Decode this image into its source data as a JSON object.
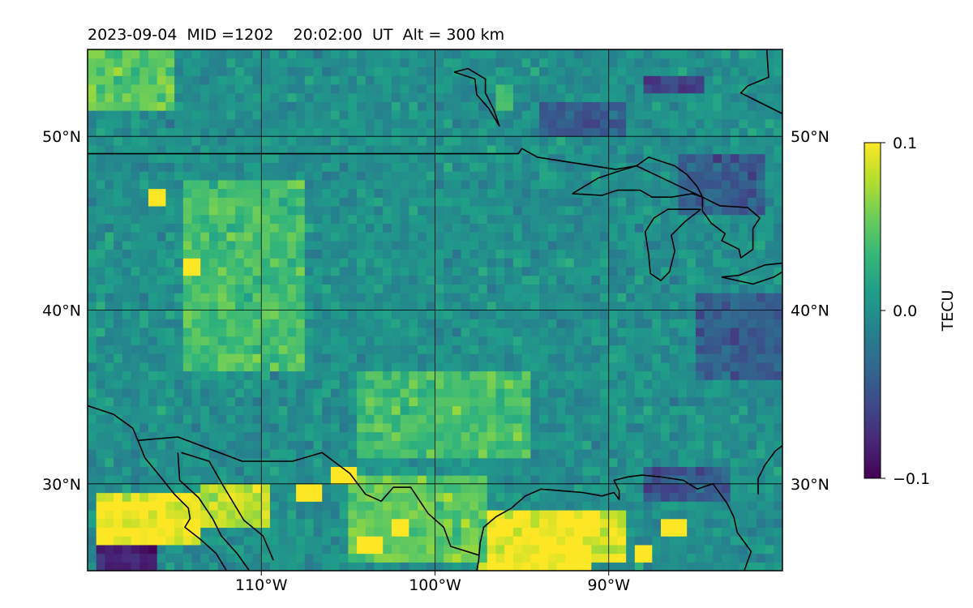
{
  "chart_data": {
    "type": "heatmap",
    "title": "2023-09-04  MID =1202    20:02:00  UT  Alt = 300 km",
    "xlabel": "",
    "ylabel": "",
    "xlim": [
      -120,
      -80
    ],
    "ylim": [
      25,
      55
    ],
    "x_ticks": [
      {
        "value": -110,
        "label": "110°W"
      },
      {
        "value": -100,
        "label": "100°W"
      },
      {
        "value": -90,
        "label": "90°W"
      }
    ],
    "y_ticks": [
      {
        "value": 30,
        "label": "30°N"
      },
      {
        "value": 40,
        "label": "40°N"
      },
      {
        "value": 50,
        "label": "50°N"
      }
    ],
    "grid": true,
    "colormap": "viridis",
    "colorbar": {
      "label": "TECU",
      "range": [
        -0.1,
        0.1
      ],
      "ticks": [
        {
          "value": 0.1,
          "label": "0.1"
        },
        {
          "value": 0.0,
          "label": "0.0"
        },
        {
          "value": -0.1,
          "label": "−0.1"
        }
      ]
    },
    "cell_size_deg": 0.5,
    "background_value_approx": 0.0,
    "regions": [
      {
        "lon": [
          -119.5,
          -113.5
        ],
        "lat": [
          26.5,
          29.5
        ],
        "value": 0.1
      },
      {
        "lon": [
          -113.5,
          -109.5
        ],
        "lat": [
          27.5,
          30
        ],
        "value": 0.08
      },
      {
        "lon": [
          -97.5,
          -91
        ],
        "lat": [
          25,
          28.5
        ],
        "value": 0.1
      },
      {
        "lon": [
          -91,
          -89
        ],
        "lat": [
          25.5,
          28.5
        ],
        "value": 0.09
      },
      {
        "lon": [
          -105,
          -97
        ],
        "lat": [
          25.5,
          30.5
        ],
        "value": 0.05
      },
      {
        "lon": [
          -119.5,
          -116
        ],
        "lat": [
          25,
          26.5
        ],
        "value": -0.08
      },
      {
        "lon": [
          -114.5,
          -107.5
        ],
        "lat": [
          36.5,
          47.5
        ],
        "value": 0.04
      },
      {
        "lon": [
          -104.5,
          -94.5
        ],
        "lat": [
          31.5,
          36.5
        ],
        "value": 0.04
      },
      {
        "lon": [
          -120,
          -115
        ],
        "lat": [
          51.5,
          55
        ],
        "value": 0.05
      },
      {
        "lon": [
          -96.5,
          -95.5
        ],
        "lat": [
          51.5,
          53
        ],
        "value": 0.05
      },
      {
        "lon": [
          -94,
          -89
        ],
        "lat": [
          50,
          52
        ],
        "value": -0.045
      },
      {
        "lon": [
          -88,
          -84.5
        ],
        "lat": [
          52.5,
          53.5
        ],
        "value": -0.06
      },
      {
        "lon": [
          -86,
          -81
        ],
        "lat": [
          45.5,
          49
        ],
        "value": -0.04
      },
      {
        "lon": [
          -85,
          -80
        ],
        "lat": [
          36,
          41
        ],
        "value": -0.04
      },
      {
        "lon": [
          -88,
          -83
        ],
        "lat": [
          29,
          31
        ],
        "value": -0.045
      }
    ],
    "hotspots": [
      {
        "lon": -115.9,
        "lat": 46.6,
        "value": 0.1
      },
      {
        "lon": -114.1,
        "lat": 42.6,
        "value": 0.1
      },
      {
        "lon": -107.3,
        "lat": 29.6,
        "value": 0.1
      },
      {
        "lon": -105.3,
        "lat": 30.6,
        "value": 0.1
      },
      {
        "lon": -103.8,
        "lat": 26.6,
        "value": 0.1
      },
      {
        "lon": -101.9,
        "lat": 27.6,
        "value": 0.1
      },
      {
        "lon": -88.1,
        "lat": 26.1,
        "value": 0.1
      },
      {
        "lon": -86.3,
        "lat": 27.6,
        "value": 0.1
      }
    ],
    "lines": [
      {
        "name": "us-canada border",
        "points": [
          [
            -120,
            49
          ],
          [
            -95.2,
            49
          ],
          [
            -95,
            49.3
          ],
          [
            -94.1,
            48.8
          ],
          [
            -89.6,
            48.1
          ],
          [
            -88.4,
            48.3
          ],
          [
            -84.6,
            46.5
          ]
        ]
      },
      {
        "name": "lake winnipeg",
        "points": [
          [
            -98.9,
            53.7
          ],
          [
            -97.7,
            53.3
          ],
          [
            -97.6,
            52.4
          ],
          [
            -96.9,
            51.6
          ],
          [
            -96.3,
            50.6
          ],
          [
            -96.6,
            51.5
          ],
          [
            -97.1,
            52.5
          ],
          [
            -97.1,
            53.3
          ],
          [
            -98.1,
            53.9
          ],
          [
            -98.9,
            53.7
          ]
        ]
      },
      {
        "name": "lake superior",
        "points": [
          [
            -92.1,
            46.7
          ],
          [
            -90.4,
            46.6
          ],
          [
            -89.5,
            46.9
          ],
          [
            -88.2,
            46.9
          ],
          [
            -87.5,
            46.5
          ],
          [
            -86.4,
            46.5
          ],
          [
            -85.2,
            46.7
          ],
          [
            -84.6,
            46.5
          ],
          [
            -84.9,
            47.1
          ],
          [
            -85.5,
            47.8
          ],
          [
            -86.2,
            48.3
          ],
          [
            -87.7,
            48.8
          ],
          [
            -88.4,
            48.3
          ],
          [
            -89.4,
            48.0
          ],
          [
            -90.6,
            47.6
          ],
          [
            -92.1,
            46.7
          ]
        ]
      },
      {
        "name": "lake michigan",
        "points": [
          [
            -84.7,
            45.8
          ],
          [
            -85.5,
            45.8
          ],
          [
            -86.6,
            45.8
          ],
          [
            -87.4,
            45.3
          ],
          [
            -87.9,
            44.5
          ],
          [
            -87.7,
            43.2
          ],
          [
            -87.6,
            42.1
          ],
          [
            -87.0,
            41.7
          ],
          [
            -86.5,
            42.2
          ],
          [
            -86.2,
            43.4
          ],
          [
            -86.4,
            44.3
          ],
          [
            -85.6,
            45.1
          ],
          [
            -84.7,
            45.8
          ]
        ]
      },
      {
        "name": "lake huron",
        "points": [
          [
            -84.6,
            46.5
          ],
          [
            -83.6,
            46.0
          ],
          [
            -82.0,
            45.9
          ],
          [
            -81.3,
            45.3
          ],
          [
            -81.7,
            44.7
          ],
          [
            -81.7,
            43.5
          ],
          [
            -82.4,
            43.0
          ],
          [
            -82.5,
            43.5
          ],
          [
            -83.5,
            44.0
          ],
          [
            -83.3,
            44.4
          ],
          [
            -84.1,
            45.0
          ],
          [
            -84.6,
            45.7
          ],
          [
            -84.6,
            46.5
          ]
        ]
      },
      {
        "name": "lake erie",
        "points": [
          [
            -83.5,
            41.9
          ],
          [
            -81.7,
            41.5
          ],
          [
            -80.5,
            41.9
          ],
          [
            -80,
            42.2
          ],
          [
            -80,
            42.7
          ],
          [
            -81.0,
            42.6
          ],
          [
            -82.5,
            42.0
          ],
          [
            -83.5,
            41.9
          ]
        ]
      },
      {
        "name": "hudson bay coast",
        "points": [
          [
            -80.9,
            55
          ],
          [
            -80.8,
            53.4
          ],
          [
            -82.0,
            52.9
          ],
          [
            -82.4,
            52.5
          ],
          [
            -80,
            51.3
          ]
        ]
      },
      {
        "name": "atlantic coast",
        "points": [
          [
            -80,
            32.2
          ],
          [
            -80.4,
            31.9
          ],
          [
            -81.0,
            31.1
          ],
          [
            -81.4,
            30.3
          ],
          [
            -81.4,
            29.4
          ]
        ]
      },
      {
        "name": "gulf coast",
        "points": [
          [
            -82.2,
            25
          ],
          [
            -81.8,
            26.1
          ],
          [
            -82.6,
            27.2
          ],
          [
            -82.8,
            28.1
          ],
          [
            -83.2,
            28.9
          ],
          [
            -84.0,
            30.0
          ],
          [
            -84.9,
            29.7
          ],
          [
            -85.7,
            30.2
          ],
          [
            -87.0,
            30.4
          ],
          [
            -88.1,
            30.5
          ],
          [
            -88.9,
            30.4
          ],
          [
            -89.7,
            30.2
          ],
          [
            -89.4,
            29.6
          ],
          [
            -89.4,
            29.1
          ],
          [
            -89.7,
            29.5
          ],
          [
            -90.4,
            29.3
          ],
          [
            -91.5,
            29.5
          ],
          [
            -92.7,
            29.6
          ],
          [
            -93.9,
            29.7
          ],
          [
            -94.8,
            29.3
          ],
          [
            -95.6,
            28.6
          ],
          [
            -96.5,
            28.1
          ],
          [
            -97.2,
            27.5
          ],
          [
            -97.4,
            26.6
          ],
          [
            -97.5,
            25.5
          ],
          [
            -97.6,
            25
          ]
        ]
      },
      {
        "name": "mexico-us border",
        "points": [
          [
            -117.1,
            32.5
          ],
          [
            -114.8,
            32.7
          ],
          [
            -111.1,
            31.3
          ],
          [
            -108.2,
            31.3
          ],
          [
            -106.5,
            31.8
          ],
          [
            -104.9,
            30.6
          ],
          [
            -104.0,
            29.4
          ],
          [
            -103.1,
            29.0
          ],
          [
            -102.4,
            29.8
          ],
          [
            -101.4,
            29.8
          ],
          [
            -100.4,
            28.3
          ],
          [
            -99.5,
            27.5
          ],
          [
            -99.1,
            26.4
          ],
          [
            -97.5,
            25.9
          ]
        ]
      },
      {
        "name": "gulf of california",
        "points": [
          [
            -114.8,
            31.8
          ],
          [
            -114.7,
            30.2
          ],
          [
            -113.6,
            29.2
          ],
          [
            -112.8,
            28.0
          ],
          [
            -112.3,
            27.0
          ],
          [
            -111.4,
            26.0
          ],
          [
            -110.4,
            24.6
          ]
        ]
      },
      {
        "name": "gulf of california east",
        "points": [
          [
            -114.6,
            31.8
          ],
          [
            -113.0,
            31.3
          ],
          [
            -112.2,
            29.9
          ],
          [
            -111.0,
            27.9
          ],
          [
            -109.9,
            27.0
          ],
          [
            -109.3,
            25.6
          ]
        ]
      },
      {
        "name": "pacific coast",
        "points": [
          [
            -120,
            34.5
          ],
          [
            -118.5,
            34.0
          ],
          [
            -117.4,
            33.2
          ],
          [
            -117.1,
            32.5
          ],
          [
            -116.7,
            31.5
          ],
          [
            -115.8,
            30.4
          ],
          [
            -115.0,
            29.4
          ],
          [
            -114.2,
            28.6
          ],
          [
            -114.1,
            28.0
          ],
          [
            -114.4,
            27.5
          ],
          [
            -113.5,
            26.8
          ],
          [
            -112.6,
            26.0
          ],
          [
            -112.0,
            25
          ]
        ]
      }
    ]
  }
}
